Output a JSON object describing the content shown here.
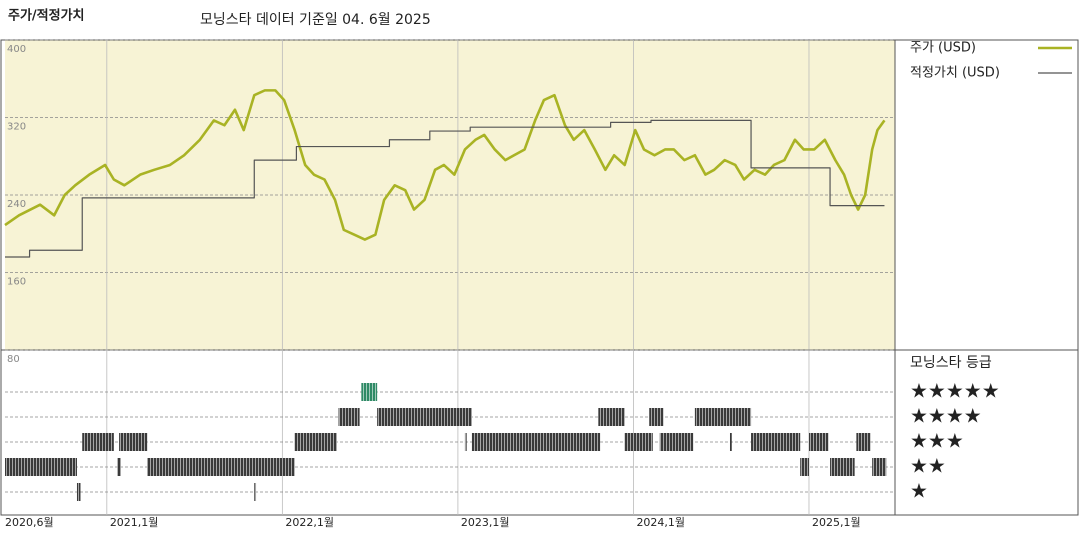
{
  "chart_data": [
    {
      "type": "line",
      "title": "주가/적정가치",
      "subtitle": "모닝스타 데이터 기준일 04. 6월 2025",
      "xlim": [
        2020.42,
        2025.49
      ],
      "ylim": [
        80,
        400
      ],
      "yticks": [
        80,
        160,
        240,
        320,
        400
      ],
      "xticks": [
        {
          "value": 2020.42,
          "label": "2020,6월"
        },
        {
          "value": 2021,
          "label": "2021,1월"
        },
        {
          "value": 2022,
          "label": "2022,1월"
        },
        {
          "value": 2023,
          "label": "2023,1월"
        },
        {
          "value": 2024,
          "label": "2024,1월"
        },
        {
          "value": 2025,
          "label": "2025,1월"
        }
      ],
      "grid": true,
      "background": "#f7f3d5",
      "series": [
        {
          "name": "주가 (USD)",
          "color": "#a9b324",
          "x": [
            2020.42,
            2020.5,
            2020.62,
            2020.7,
            2020.76,
            2020.82,
            2020.9,
            2020.99,
            2021.04,
            2021.1,
            2021.19,
            2021.27,
            2021.36,
            2021.44,
            2021.53,
            2021.61,
            2021.67,
            2021.73,
            2021.78,
            2021.84,
            2021.9,
            2021.96,
            2022.01,
            2022.07,
            2022.13,
            2022.18,
            2022.24,
            2022.3,
            2022.35,
            2022.41,
            2022.47,
            2022.53,
            2022.58,
            2022.64,
            2022.7,
            2022.75,
            2022.81,
            2022.87,
            2022.92,
            2022.98,
            2023.04,
            2023.1,
            2023.15,
            2023.21,
            2023.27,
            2023.32,
            2023.38,
            2023.44,
            2023.49,
            2023.55,
            2023.61,
            2023.66,
            2023.72,
            2023.78,
            2023.84,
            2023.89,
            2023.95,
            2024.01,
            2024.06,
            2024.12,
            2024.18,
            2024.23,
            2024.29,
            2024.35,
            2024.41,
            2024.46,
            2024.52,
            2024.58,
            2024.63,
            2024.69,
            2024.75,
            2024.8,
            2024.86,
            2024.92,
            2024.97,
            2025.03,
            2025.09,
            2025.15,
            2025.2,
            2025.24,
            2025.28,
            2025.32,
            2025.36,
            2025.39,
            2025.43
          ],
          "values": [
            209,
            219,
            230,
            219,
            240,
            250,
            261,
            271,
            256,
            250,
            261,
            266,
            271,
            281,
            297,
            317,
            312,
            328,
            307,
            343,
            348,
            348,
            338,
            307,
            271,
            261,
            256,
            235,
            204,
            199,
            194,
            199,
            235,
            250,
            245,
            225,
            235,
            266,
            271,
            261,
            287,
            297,
            302,
            287,
            276,
            281,
            287,
            317,
            338,
            343,
            312,
            297,
            307,
            287,
            266,
            281,
            271,
            307,
            287,
            281,
            287,
            287,
            276,
            281,
            261,
            266,
            276,
            271,
            256,
            266,
            261,
            271,
            276,
            297,
            287,
            287,
            297,
            276,
            261,
            240,
            225,
            240,
            287,
            307,
            317
          ]
        },
        {
          "name": "적정가치 (USD)",
          "color": "#555555",
          "step": true,
          "x": [
            2020.42,
            2020.56,
            2020.86,
            2021.84,
            2022.08,
            2022.61,
            2022.84,
            2023.07,
            2023.87,
            2024.1,
            2024.67,
            2025.12,
            2025.43
          ],
          "values": [
            176,
            183,
            237,
            276,
            290,
            297,
            306,
            310,
            315,
            317,
            268,
            229,
            229
          ]
        }
      ]
    },
    {
      "type": "timeline",
      "title": "모닝스타 등급",
      "xlim": [
        2020.42,
        2025.49
      ],
      "yticks": [
        {
          "value": 5,
          "label": "★★★★★"
        },
        {
          "value": 4,
          "label": "★★★★"
        },
        {
          "value": 3,
          "label": "★★★"
        },
        {
          "value": 2,
          "label": "★★"
        },
        {
          "value": 1,
          "label": "★"
        }
      ],
      "start": [
        2020.42,
        2021.06,
        2021.23,
        2024.95,
        2025.12,
        2025.36,
        2020.86,
        2021.07,
        2022.07,
        2023.04,
        2023.08,
        2023.95,
        2024.15,
        2024.55,
        2024.67,
        2025.0,
        2025.27,
        2022.32,
        2022.54,
        2023.8,
        2024.09,
        2024.35,
        2022.45,
        2020.83,
        2021.84
      ],
      "end": [
        2020.83,
        2021.08,
        2022.07,
        2025.0,
        2025.26,
        2025.44,
        2021.04,
        2021.23,
        2022.31,
        2023.05,
        2023.81,
        2024.11,
        2024.34,
        2024.56,
        2024.95,
        2025.11,
        2025.35,
        2022.44,
        2023.08,
        2023.95,
        2024.17,
        2024.67,
        2022.54,
        2020.85,
        2021.85
      ],
      "values": [
        2,
        2,
        2,
        2,
        2,
        2,
        3,
        3,
        3,
        3,
        3,
        3,
        3,
        3,
        3,
        3,
        3,
        4,
        4,
        4,
        4,
        4,
        5,
        1,
        1
      ],
      "color": "#3a3a3a",
      "top_color": "#2f8a66"
    }
  ]
}
